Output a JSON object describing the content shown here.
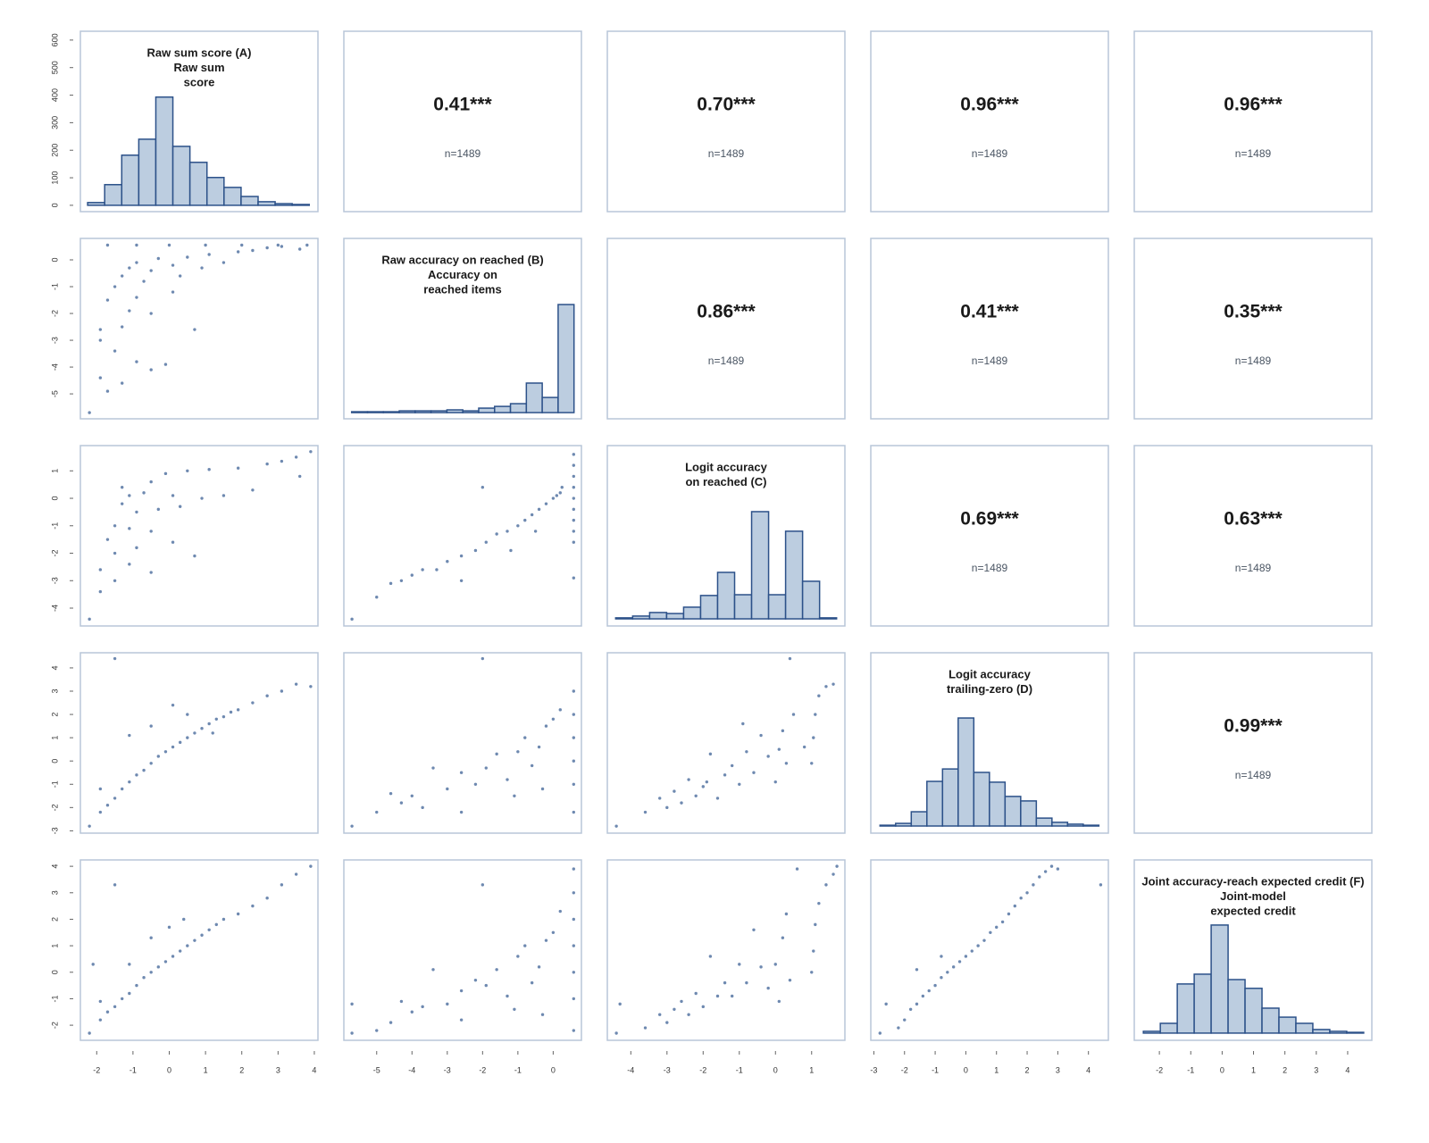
{
  "chart_data": [
    {
      "type": "histogram",
      "title_lines": [
        "Raw sum score (A)",
        "Raw sum",
        "score"
      ],
      "bins": [
        -2.25,
        -1.78,
        -1.31,
        -0.84,
        -0.37,
        0.1,
        0.57,
        1.04,
        1.51,
        1.98,
        2.45,
        2.92,
        3.39,
        3.86
      ],
      "values": [
        10,
        75,
        182,
        240,
        393,
        214,
        156,
        101,
        65,
        32,
        13,
        6,
        3
      ],
      "xlim": [
        -2.45,
        4.1
      ],
      "ylim": [
        -23,
        632
      ],
      "yticks": [
        0,
        100,
        200,
        300,
        400,
        500,
        600
      ],
      "color": "#bccde0",
      "edgecolor": "#2c5189"
    },
    {
      "type": "correlation",
      "values": [
        0.41
      ],
      "value_labels": [
        "0.41***"
      ],
      "note": "n=1489"
    },
    {
      "type": "correlation",
      "values": [
        0.7
      ],
      "value_labels": [
        "0.70***"
      ],
      "note": "n=1489"
    },
    {
      "type": "correlation",
      "values": [
        0.96
      ],
      "value_labels": [
        "0.96***"
      ],
      "note": "n=1489"
    },
    {
      "type": "correlation",
      "values": [
        0.96
      ],
      "value_labels": [
        "0.96***"
      ],
      "note": "n=1489"
    },
    {
      "type": "scatter",
      "xlim": [
        -2.45,
        4.1
      ],
      "ylim": [
        -5.93,
        0.8
      ],
      "yticks": [
        -5,
        -4,
        -3,
        -2,
        -1,
        0
      ],
      "color": "#3d6196",
      "x": [
        -2.2,
        -1.9,
        -1.9,
        -1.9,
        -1.7,
        -1.7,
        -1.5,
        -1.5,
        -1.3,
        -1.3,
        -1.3,
        -1.1,
        -1.1,
        -0.9,
        -0.9,
        -0.9,
        -0.7,
        -0.5,
        -0.5,
        -0.5,
        -0.3,
        -0.1,
        0.1,
        0.1,
        0.3,
        0.5,
        0.7,
        0.9,
        1.1,
        1.5,
        1.9,
        2.3,
        2.7,
        3.1,
        3.6,
        -1.7,
        -0.9,
        0,
        1,
        2,
        3,
        3.8
      ],
      "y": [
        -5.7,
        -4.4,
        -3,
        -2.6,
        -4.9,
        -1.5,
        -3.4,
        -1,
        -4.6,
        -2.5,
        -0.6,
        -1.9,
        -0.3,
        -3.8,
        -1.4,
        -0.1,
        -0.8,
        -4.1,
        -2,
        -0.4,
        0.05,
        -3.9,
        -1.2,
        -0.2,
        -0.6,
        0.1,
        -2.6,
        -0.3,
        0.2,
        -0.1,
        0.3,
        0.35,
        0.45,
        0.5,
        0.4,
        0.55,
        0.55,
        0.55,
        0.55,
        0.55,
        0.55,
        0.55
      ]
    },
    {
      "type": "histogram",
      "title_lines": [
        "Raw accuracy on reached (B)",
        "Accuracy on",
        "reached items"
      ],
      "bins": [
        -5.71,
        -5.26,
        -4.81,
        -4.36,
        -3.91,
        -3.46,
        -3.01,
        -2.56,
        -2.11,
        -1.66,
        -1.21,
        -0.76,
        -0.31,
        0.14,
        0.59
      ],
      "values": [
        7,
        7,
        7,
        14,
        14,
        14,
        22,
        14,
        36,
        50,
        72,
        238,
        122,
        871
      ],
      "xlim": [
        -5.93,
        0.8
      ],
      "ylim": [
        -50,
        1404
      ],
      "color": "#bccde0",
      "edgecolor": "#2c5189"
    },
    {
      "type": "correlation",
      "values": [
        0.86
      ],
      "value_labels": [
        "0.86***"
      ],
      "note": "n=1489"
    },
    {
      "type": "correlation",
      "values": [
        0.41
      ],
      "value_labels": [
        "0.41***"
      ],
      "note": "n=1489"
    },
    {
      "type": "correlation",
      "values": [
        0.35
      ],
      "value_labels": [
        "0.35***"
      ],
      "note": "n=1489"
    },
    {
      "type": "scatter",
      "xlim": [
        -2.45,
        4.1
      ],
      "ylim": [
        -4.65,
        1.92
      ],
      "yticks": [
        -4,
        -3,
        -2,
        -1,
        0,
        1
      ],
      "color": "#3d6196",
      "x": [
        -2.2,
        -1.9,
        -1.9,
        -1.7,
        -1.5,
        -1.5,
        -1.5,
        -1.3,
        -1.3,
        -1.1,
        -1.1,
        -1.1,
        -0.9,
        -0.9,
        -0.7,
        -0.5,
        -0.5,
        -0.5,
        -0.3,
        -0.1,
        0.1,
        0.1,
        0.3,
        0.5,
        0.7,
        0.9,
        1.1,
        1.5,
        1.9,
        2.3,
        2.7,
        3.1,
        3.5,
        3.9,
        3.6
      ],
      "y": [
        -4.4,
        -3.4,
        -2.6,
        -1.5,
        -3,
        -2,
        -1,
        -0.2,
        0.4,
        -2.4,
        -1.1,
        0.1,
        -1.8,
        -0.5,
        0.2,
        -2.7,
        -1.2,
        0.6,
        -0.4,
        0.9,
        -1.6,
        0.1,
        -0.3,
        1,
        -2.1,
        0,
        1.05,
        0.1,
        1.1,
        0.3,
        1.25,
        1.35,
        1.5,
        1.7,
        0.8
      ]
    },
    {
      "type": "scatter",
      "xlim": [
        -5.93,
        0.8
      ],
      "ylim": [
        -4.65,
        1.92
      ],
      "color": "#3d6196",
      "x": [
        -5.7,
        -5,
        -4.6,
        -4.3,
        -4,
        -3.7,
        -3.3,
        -3,
        -2.6,
        -2.6,
        -2.2,
        -2,
        -1.9,
        -1.6,
        -1.3,
        -1,
        -0.8,
        -0.6,
        -0.4,
        -0.2,
        0,
        0.1,
        0.2,
        0.25,
        0.58,
        0.58,
        0.58,
        0.58,
        0.58,
        0.58,
        0.58,
        0.58,
        0.58,
        0.58,
        -0.5,
        -1.2
      ],
      "y": [
        -4.4,
        -3.6,
        -3.1,
        -3,
        -2.8,
        -2.6,
        -2.6,
        -2.3,
        -2.1,
        -3,
        -1.9,
        0.4,
        -1.6,
        -1.3,
        -1.2,
        -1,
        -0.8,
        -0.6,
        -0.4,
        -0.2,
        0,
        0.1,
        0.2,
        0.4,
        1.6,
        1.2,
        0.8,
        0.4,
        0,
        -0.4,
        -0.8,
        -1.2,
        -1.6,
        -2.9,
        -1.2,
        -1.9
      ]
    },
    {
      "type": "histogram",
      "title_lines": [
        "Logit accuracy",
        "on reached (C)"
      ],
      "bins": [
        -4.42,
        -3.95,
        -3.48,
        -3.01,
        -2.54,
        -2.07,
        -1.6,
        -1.13,
        -0.66,
        -0.19,
        0.28,
        0.75,
        1.22,
        1.69
      ],
      "values": [
        4,
        11,
        25,
        21,
        46,
        92,
        183,
        95,
        422,
        95,
        345,
        148,
        4
      ],
      "xlim": [
        -4.65,
        1.92
      ],
      "ylim": [
        -28,
        682
      ],
      "color": "#bccde0",
      "edgecolor": "#2c5189"
    },
    {
      "type": "correlation",
      "values": [
        0.69
      ],
      "value_labels": [
        "0.69***"
      ],
      "note": "n=1489"
    },
    {
      "type": "correlation",
      "values": [
        0.63
      ],
      "value_labels": [
        "0.63***"
      ],
      "note": "n=1489"
    },
    {
      "type": "scatter",
      "xlim": [
        -2.45,
        4.1
      ],
      "ylim": [
        -3.1,
        4.65
      ],
      "yticks": [
        -3,
        -2,
        -1,
        0,
        1,
        2,
        3,
        4
      ],
      "color": "#3d6196",
      "x": [
        -2.2,
        -1.9,
        -1.9,
        -1.7,
        -1.5,
        -1.5,
        -1.3,
        -1.1,
        -1.1,
        -0.9,
        -0.7,
        -0.5,
        -0.5,
        -0.3,
        -0.1,
        0.1,
        0.1,
        0.3,
        0.5,
        0.7,
        0.9,
        1.1,
        1.3,
        1.5,
        1.7,
        1.9,
        2.3,
        2.7,
        3.1,
        3.5,
        3.9,
        0.5,
        1.2
      ],
      "y": [
        -2.8,
        -2.2,
        -1.2,
        -1.9,
        -1.6,
        4.4,
        -1.2,
        -0.9,
        1.1,
        -0.6,
        -0.4,
        -0.1,
        1.5,
        0.2,
        0.4,
        0.6,
        2.4,
        0.8,
        1,
        1.2,
        1.4,
        1.6,
        1.8,
        1.9,
        2.1,
        2.2,
        2.5,
        2.8,
        3,
        3.3,
        3.2,
        2,
        1.2
      ]
    },
    {
      "type": "scatter",
      "xlim": [
        -5.93,
        0.8
      ],
      "ylim": [
        -3.1,
        4.65
      ],
      "color": "#3d6196",
      "x": [
        -5.7,
        -5,
        -4.6,
        -4.3,
        -4,
        -3.7,
        -3.4,
        -3,
        -2.6,
        -2.6,
        -2.2,
        -2,
        -1.9,
        -1.6,
        -1.3,
        -1,
        -0.8,
        -0.6,
        -0.4,
        -0.2,
        0,
        0.2,
        0.58,
        0.58,
        0.58,
        0.58,
        0.58,
        0.58,
        -0.3,
        -1.1
      ],
      "y": [
        -2.8,
        -2.2,
        -1.4,
        -1.8,
        -1.5,
        -2,
        -0.3,
        -1.2,
        -0.5,
        -2.2,
        -1,
        4.4,
        -0.3,
        0.3,
        -0.8,
        0.4,
        1,
        -0.2,
        0.6,
        1.5,
        1.8,
        2.2,
        3,
        2,
        1,
        0,
        -1,
        -2.2,
        -1.2,
        -1.5
      ]
    },
    {
      "type": "scatter",
      "xlim": [
        -4.65,
        1.92
      ],
      "ylim": [
        -3.1,
        4.65
      ],
      "color": "#3d6196",
      "x": [
        -4.4,
        -3.6,
        -3.2,
        -3,
        -2.8,
        -2.6,
        -2.4,
        -2.2,
        -2,
        -1.8,
        -1.6,
        -1.4,
        -1.2,
        -1,
        -0.8,
        -0.6,
        -0.4,
        -0.2,
        0,
        0.1,
        0.2,
        0.3,
        0.4,
        0.5,
        0.8,
        1,
        1.05,
        1.1,
        1.2,
        1.4,
        1.6,
        -0.9,
        -1.9
      ],
      "y": [
        -2.8,
        -2.2,
        -1.6,
        -2,
        -1.3,
        -1.8,
        -0.8,
        -1.5,
        -1.1,
        0.3,
        -1.6,
        -0.6,
        -0.2,
        -1,
        0.4,
        -0.5,
        1.1,
        0.2,
        -0.9,
        0.5,
        1.3,
        -0.1,
        4.4,
        2,
        0.6,
        -0.1,
        1,
        2,
        2.8,
        3.2,
        3.3,
        1.6,
        -0.9
      ]
    },
    {
      "type": "histogram",
      "title_lines": [
        "Logit accuracy",
        "trailing-zero (D)"
      ],
      "bins": [
        -2.8,
        -2.29,
        -1.78,
        -1.27,
        -0.76,
        -0.25,
        0.26,
        0.77,
        1.28,
        1.79,
        2.3,
        2.81,
        3.32,
        3.83,
        4.34
      ],
      "values": [
        3,
        10,
        54,
        169,
        216,
        409,
        203,
        166,
        112,
        95,
        30,
        14,
        7,
        3
      ],
      "xlim": [
        -3.1,
        4.65
      ],
      "ylim": [
        -27,
        656
      ],
      "color": "#bccde0",
      "edgecolor": "#2c5189"
    },
    {
      "type": "correlation",
      "values": [
        0.99
      ],
      "value_labels": [
        "0.99***"
      ],
      "note": "n=1489"
    },
    {
      "type": "scatter",
      "xlim": [
        -2.45,
        4.1
      ],
      "ylim": [
        -2.57,
        4.24
      ],
      "xticks": [
        -2,
        -1,
        0,
        1,
        2,
        3,
        4
      ],
      "yticks": [
        -2,
        -1,
        0,
        1,
        2,
        3,
        4
      ],
      "color": "#3d6196",
      "x": [
        -2.2,
        -1.9,
        -1.9,
        -1.7,
        -1.5,
        -1.5,
        -1.3,
        -1.1,
        -1.1,
        -0.9,
        -0.7,
        -0.5,
        -0.5,
        -0.3,
        -0.1,
        0.1,
        0.3,
        0.4,
        0.5,
        0.7,
        0.9,
        1.1,
        1.3,
        1.5,
        1.9,
        2.3,
        2.7,
        3.1,
        3.5,
        3.9,
        -2.1,
        0
      ],
      "y": [
        -2.3,
        -1.8,
        -1.1,
        -1.5,
        3.3,
        -1.3,
        -1,
        -0.8,
        0.3,
        -0.5,
        -0.2,
        0,
        1.3,
        0.2,
        0.4,
        0.6,
        0.8,
        2,
        1,
        1.2,
        1.4,
        1.6,
        1.8,
        2,
        2.2,
        2.5,
        2.8,
        3.3,
        3.7,
        4,
        0.3,
        1.7
      ]
    },
    {
      "type": "scatter",
      "xlim": [
        -5.93,
        0.8
      ],
      "ylim": [
        -2.57,
        4.24
      ],
      "xticks": [
        -5,
        -4,
        -3,
        -2,
        -1,
        0
      ],
      "color": "#3d6196",
      "x": [
        -5.7,
        -5.7,
        -5,
        -4.6,
        -4.3,
        -4,
        -3.7,
        -3.4,
        -3,
        -2.6,
        -2.6,
        -2.2,
        -2,
        -1.9,
        -1.6,
        -1.3,
        -1,
        -0.8,
        -0.6,
        -0.4,
        -0.2,
        0,
        0.2,
        0.58,
        0.58,
        0.58,
        0.58,
        0.58,
        0.58,
        0.58,
        -0.3,
        -1.1
      ],
      "y": [
        -2.3,
        -1.2,
        -2.2,
        -1.9,
        -1.1,
        -1.5,
        -1.3,
        0.1,
        -1.2,
        -0.7,
        -1.8,
        -0.3,
        3.3,
        -0.5,
        0.1,
        -0.9,
        0.6,
        1,
        -0.4,
        0.2,
        1.2,
        1.5,
        2.3,
        3.9,
        3,
        2,
        1,
        0,
        -1,
        -2.2,
        -1.6,
        -1.4
      ]
    },
    {
      "type": "scatter",
      "xlim": [
        -4.65,
        1.92
      ],
      "ylim": [
        -2.57,
        4.24
      ],
      "xticks": [
        -4,
        -3,
        -2,
        -1,
        0,
        1
      ],
      "color": "#3d6196",
      "x": [
        -4.4,
        -4.3,
        -3.6,
        -3.2,
        -3,
        -2.8,
        -2.6,
        -2.4,
        -2.2,
        -2,
        -1.8,
        -1.6,
        -1.4,
        -1.2,
        -1,
        -0.8,
        -0.6,
        -0.4,
        -0.2,
        0,
        0.1,
        0.2,
        0.3,
        0.4,
        0.6,
        1,
        1.05,
        1.1,
        1.2,
        1.4,
        1.6,
        1.7
      ],
      "y": [
        -2.3,
        -1.2,
        -2.1,
        -1.6,
        -1.9,
        -1.4,
        -1.1,
        -1.6,
        -0.8,
        -1.3,
        0.6,
        -0.9,
        -0.4,
        -0.9,
        0.3,
        -0.4,
        1.6,
        0.2,
        -0.6,
        0.3,
        -1.1,
        1.3,
        2.2,
        -0.3,
        3.9,
        0,
        0.8,
        1.8,
        2.6,
        3.3,
        3.7,
        4
      ]
    },
    {
      "type": "scatter",
      "xlim": [
        -3.1,
        4.65
      ],
      "ylim": [
        -2.57,
        4.24
      ],
      "xticks": [
        -3,
        -2,
        -1,
        0,
        1,
        2,
        3,
        4
      ],
      "color": "#3d6196",
      "x": [
        -2.8,
        -2.6,
        -2.2,
        -2,
        -1.8,
        -1.6,
        -1.4,
        -1.2,
        -1,
        -0.8,
        -0.6,
        -0.4,
        -0.2,
        0,
        0.2,
        0.4,
        0.6,
        0.8,
        1,
        1.2,
        1.4,
        1.6,
        1.8,
        2,
        2.2,
        2.4,
        2.6,
        2.8,
        3,
        4.4,
        -1.6,
        -0.8
      ],
      "y": [
        -2.3,
        -1.2,
        -2.1,
        -1.8,
        -1.4,
        -1.2,
        -0.9,
        -0.7,
        -0.5,
        -0.2,
        0,
        0.2,
        0.4,
        0.6,
        0.8,
        1,
        1.2,
        1.5,
        1.7,
        1.9,
        2.2,
        2.5,
        2.8,
        3,
        3.3,
        3.6,
        3.8,
        4,
        3.9,
        3.3,
        0.1,
        0.6
      ]
    },
    {
      "type": "histogram",
      "title_lines": [
        "Joint accuracy-reach expected credit (F)",
        "Joint-model",
        "expected credit"
      ],
      "bins": [
        -2.51,
        -1.97,
        -1.43,
        -0.89,
        -0.35,
        0.19,
        0.73,
        1.27,
        1.81,
        2.35,
        2.89,
        3.43,
        3.97,
        4.51
      ],
      "values": [
        7,
        38,
        191,
        229,
        420,
        208,
        174,
        97,
        62,
        38,
        14,
        7,
        3
      ],
      "xlim": [
        -2.8,
        4.77
      ],
      "ylim": [
        -28,
        673
      ],
      "xticks": [
        -2,
        -1,
        0,
        1,
        2,
        3,
        4
      ],
      "color": "#bccde0",
      "edgecolor": "#2c5189"
    }
  ]
}
